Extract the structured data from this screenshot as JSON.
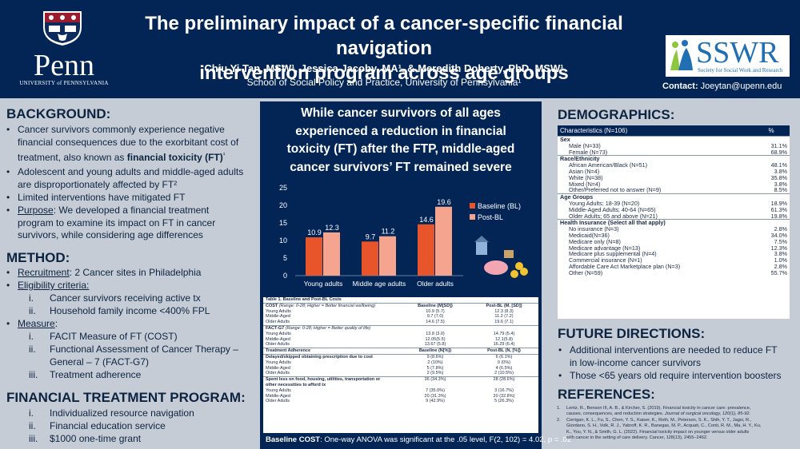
{
  "header": {
    "title_line1": "The preliminary impact of a cancer-specific financial navigation",
    "title_line2": "intervention program across age groups",
    "authors": "Chiu Yi Tan, MSW¹, Jessica Jacoby, MA¹, & Meredith Doherty, PhD, MSW¹",
    "affiliation": "School of Social Policy and Practice, University of Pennsylvania¹",
    "penn_logo": "Penn",
    "penn_sub": "UNIVERSITY of PENNSYLVANIA",
    "sswr_logo": "SSWR",
    "sswr_sub": "Society for Social Work and Research",
    "contact_label": "Contact:",
    "contact_email": "Joeytan@upenn.edu"
  },
  "background": {
    "heading": "BACKGROUND:",
    "b1a": "Cancer survivors commonly experience negative",
    "b1b": "financial consequences due to the exorbitant cost of",
    "b1c": "treatment, also known as",
    "b1d": "financial toxicity (FT)",
    "b1e": "¹",
    "b2a": "Adolescent and young adults and middle-aged adults",
    "b2b": "are disproportionately affected by FT²",
    "b3": "Limited interventions have mitigated FT",
    "b4a": "Purpose",
    "b4b": ": We developed a financial treatment",
    "b4c": "program to examine its impact on FT in cancer",
    "b4d": "survivors, while considering age differences"
  },
  "method": {
    "heading": "METHOD:",
    "recruit_label": "Recruitment",
    "recruit_text": ": 2 Cancer sites in Philadelphia",
    "elig_label": "Eligibility criteria:",
    "elig1_n": "i.",
    "elig1": "Cancer survivors receiving active tx",
    "elig2_n": "ii.",
    "elig2": "Household family income <400% FPL",
    "measure_label": "Measure",
    "measure_colon": ":",
    "m1_n": "i.",
    "m1": "FACIT Measure of FT (COST)",
    "m2_n": "ii.",
    "m2a": "Functional Assessment of Cancer Therapy –",
    "m2b": "General – 7 (FACT-G7)",
    "m3_n": "iii.",
    "m3": "Treatment adherence"
  },
  "program": {
    "heading": "FINANCIAL TREATMENT PROGRAM:",
    "p1_n": "i.",
    "p1": "Individualized resource navigation",
    "p2_n": "ii.",
    "p2": "Financial education service",
    "p3_n": "iii.",
    "p3": "$1000 one-time grant"
  },
  "middle": {
    "headline_l1": "While cancer survivors of all ages",
    "headline_l2": "experienced a reduction in financial",
    "headline_l3": "toxicity (FT) after the FTP, middle-aged",
    "headline_l4": "cancer survivors’ FT remained severe",
    "anova_bold": "Baseline COST",
    "anova_text": ": One-way ANOVA was significant at the .05 level, F(2, 102) = 4.02, p = .02"
  },
  "chart_data": {
    "type": "bar",
    "categories": [
      "Young adults",
      "Middle age adults",
      "Older adults"
    ],
    "series": [
      {
        "name": "Baseline (BL)",
        "values": [
          10.9,
          9.7,
          14.6
        ],
        "color": "#e8552a"
      },
      {
        "name": "Post-BL",
        "values": [
          12.3,
          11.2,
          19.6
        ],
        "color": "#f5a48f"
      }
    ],
    "ylim": [
      0,
      25
    ],
    "yticks": [
      0,
      5,
      10,
      15,
      20,
      25
    ],
    "legend": "right",
    "title": "",
    "xlabel": "",
    "ylabel": ""
  },
  "table1": {
    "caption": "Table 1. Baseline and Post-BL Costs",
    "cost_label": "COST",
    "cost_range": "(Range: 0-28; Higher = Better financial wellbeing)",
    "col_bl": "Baseline (M[SD])",
    "col_post": "Post-BL (M, [SD])",
    "cost_rows": [
      {
        "label": "Young Adults",
        "bl": "10.9 (5.7)",
        "post": "12.3 (8.3)"
      },
      {
        "label": "Middle-Aged",
        "bl": "9.7 (7.0)",
        "post": "11.2 (7.2)"
      },
      {
        "label": "Older Adults",
        "bl": "14.6 (7.5)",
        "post": "19.6 (7.1)"
      }
    ],
    "fact_label": "FACT-G7",
    "fact_range": "(Range: 0-28; Higher = Better quality of life)",
    "fact_rows": [
      {
        "label": "Young Adults",
        "bl": "13.8 (3.0)",
        "post": "14.79 (5.4)"
      },
      {
        "label": "Middle-Aged",
        "bl": "12.05(5.5)",
        "post": "12.1(5.8)"
      },
      {
        "label": "Older Adults",
        "bl": "13.67 (5.8)",
        "post": "16.29 (6.4)"
      }
    ],
    "adh_label": "Treatment Adherence",
    "adh_bl": "Baseline (N[%])",
    "adh_post": "Post-BL (N, [%])",
    "delay_label": "Delayed/skipped obtaining prescription due to cost",
    "delay_bl": "9 (8.6%)",
    "delay_post": "6 (6.1%)",
    "delay_rows": [
      {
        "label": "Young Adults",
        "bl": "2 (10%)",
        "post": "0 (0%)"
      },
      {
        "label": "Middle-Aged",
        "bl": "5 (7.8%)",
        "post": "4 (6.5%)"
      },
      {
        "label": "Older Adults",
        "bl": "2 (9.5%)",
        "post": "2 (10.5%)"
      }
    ],
    "spent_label_1": "Spent less on food, housing, utilities, transportation or",
    "spent_label_2": "other necessities to afford tx",
    "spent_bl": "36 (34.3%)",
    "spent_post": "28 (28.6%)",
    "spent_rows": [
      {
        "label": "Young Adults",
        "bl": "7 (35.0%)",
        "post": "3 (16.7%)"
      },
      {
        "label": "Middle-Aged",
        "bl": "20 (31.3%)",
        "post": "20 (32.8%)"
      },
      {
        "label": "Older Adults",
        "bl": "9 (42.9%)",
        "post": "5 (26.3%)"
      }
    ]
  },
  "demographics": {
    "heading": "DEMOGRAPHICS:",
    "col1": "Characteristics (N=106)",
    "col2": "%",
    "rows": [
      {
        "label": "Sex",
        "pct": "",
        "type": "group"
      },
      {
        "label": "Male (N=33)",
        "pct": "31.1%",
        "type": "item"
      },
      {
        "label": "Female (N=73)",
        "pct": "68.9%",
        "type": "item"
      },
      {
        "label": "Race/Ethnicity",
        "pct": "",
        "type": "group"
      },
      {
        "label": "African American/Black (N=51)",
        "pct": "48.1%",
        "type": "item"
      },
      {
        "label": "Asian (N=4)",
        "pct": "3.8%",
        "type": "item"
      },
      {
        "label": "White (N=38)",
        "pct": "35.8%",
        "type": "item"
      },
      {
        "label": "Mixed (N=4)",
        "pct": "3.8%",
        "type": "item"
      },
      {
        "label": "Other/Preferred not to answer (N=9)",
        "pct": "8.5%",
        "type": "item"
      },
      {
        "label": "Age Groups",
        "pct": "",
        "type": "group"
      },
      {
        "label": "Young Adults; 18-39 (N=20)",
        "pct": "18.9%",
        "type": "item"
      },
      {
        "label": "Middle-Aged Adults; 40-64 (N=65)",
        "pct": "61.3%",
        "type": "item"
      },
      {
        "label": "Older Adults; 65 and above (N=21)",
        "pct": "19.8%",
        "type": "item"
      },
      {
        "label": "Health Insurance (Select all that apply)",
        "pct": "",
        "type": "group"
      },
      {
        "label": "No insurance (N=3)",
        "pct": "2.8%",
        "type": "item"
      },
      {
        "label": "Medicaid(N=36)",
        "pct": "34.0%",
        "type": "item"
      },
      {
        "label": "Medicare only (N=8)",
        "pct": "7.5%",
        "type": "item"
      },
      {
        "label": "Medicare advantage (N=13)",
        "pct": "12.3%",
        "type": "item"
      },
      {
        "label": "Medicare plus supplemental (N=4)",
        "pct": "3.8%",
        "type": "item"
      },
      {
        "label": "Commercial insurance (N=1)",
        "pct": "1.0%",
        "type": "item"
      },
      {
        "label": "Affordable Care Act Marketplace plan (N=3)",
        "pct": "2.8%",
        "type": "item"
      },
      {
        "label": "Other (N=59)",
        "pct": "55.7%",
        "type": "item"
      }
    ]
  },
  "future": {
    "heading": "FUTURE DIRECTIONS:",
    "f1a": "Additional interventions are needed to reduce FT",
    "f1b": "in low-income cancer survivors",
    "f2": "Those <65 years old require intervention boosters"
  },
  "references": {
    "heading": "REFERENCES:",
    "r1_n": "1.",
    "r1a": "Lentz, R., Benson III, A. B., & Kircher, S. (2019). Financial toxicity in cancer care: prevalence,",
    "r1b": "causes, consequences, and reduction strategies.",
    "r1c": "Journal of surgical oncology, 120(1), 85-92.",
    "r2_n": "2.",
    "r2a": "Corrigan, K. L., Fu, S., Chen, Y. S., Kaiser, K., Roth, M., Peterson, S. K., Shih, Y. T., Jagsi, R.,",
    "r2b": "Giordano, S. H., Volk, R. J., Yabroff, K. R., Banegas, M. P., Acquati, C., Conti, R. M., Ma, H. Y., Ku,",
    "r2c": "K., You, Y. N., & Smith, G. L. (2022). Financial toxicity impact on younger versus older adults",
    "r2d": "with cancer in the setting of care delivery. Cancer, 128(13), 2455–2462."
  }
}
